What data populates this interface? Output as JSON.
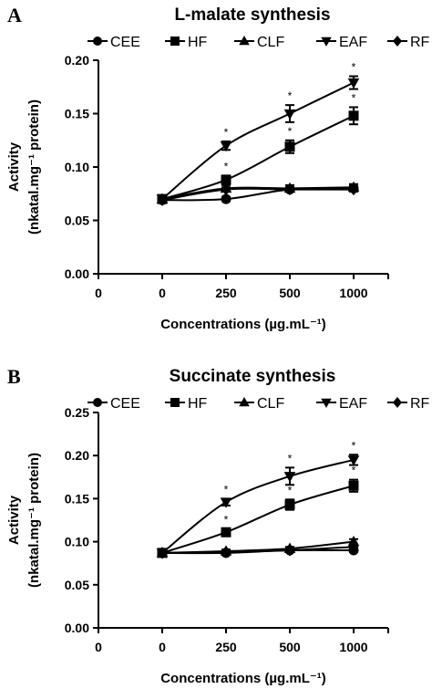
{
  "chart_data": [
    {
      "type": "line",
      "panel": "A",
      "title": "L-malate synthesis",
      "xlabel": "Concentrations (µg.mL⁻¹)",
      "ylabel_line1": "Activity",
      "ylabel_line2": "(nkatal.mg⁻¹ protein)",
      "categories": [
        "0",
        "250",
        "500",
        "1000"
      ],
      "x_tick_labels": [
        "0",
        "0",
        "250",
        "500",
        "1000"
      ],
      "y_tick_labels": [
        "0.00",
        "0.05",
        "0.10",
        "0.15",
        "0.20"
      ],
      "ylim": [
        0,
        0.2
      ],
      "y_ticks": [
        0,
        0.05,
        0.1,
        0.15,
        0.2
      ],
      "legend_position": "top",
      "series": [
        {
          "name": "CEE",
          "marker": "circle",
          "values": [
            0.069,
            0.07,
            0.079,
            0.08
          ],
          "err": [
            0.002,
            0.002,
            0.002,
            0.003
          ],
          "stars": [
            false,
            false,
            false,
            false
          ]
        },
        {
          "name": "HF",
          "marker": "square",
          "values": [
            0.07,
            0.088,
            0.119,
            0.148
          ],
          "err": [
            0.002,
            0.004,
            0.006,
            0.008
          ],
          "stars": [
            false,
            true,
            true,
            true
          ]
        },
        {
          "name": "CLF",
          "marker": "triangle-up",
          "values": [
            0.07,
            0.08,
            0.08,
            0.081
          ],
          "err": [
            0.002,
            0.003,
            0.003,
            0.003
          ],
          "stars": [
            false,
            false,
            false,
            false
          ]
        },
        {
          "name": "EAF",
          "marker": "triangle-down",
          "values": [
            0.07,
            0.12,
            0.15,
            0.179
          ],
          "err": [
            0.002,
            0.004,
            0.008,
            0.006
          ],
          "stars": [
            false,
            true,
            true,
            true
          ]
        },
        {
          "name": "RF",
          "marker": "diamond",
          "values": [
            0.069,
            0.079,
            0.079,
            0.079
          ],
          "err": [
            0.002,
            0.002,
            0.002,
            0.002
          ],
          "stars": [
            false,
            false,
            false,
            false
          ]
        }
      ]
    },
    {
      "type": "line",
      "panel": "B",
      "title": "Succinate synthesis",
      "xlabel": "Concentrations (µg.mL⁻¹)",
      "ylabel_line1": "Activity",
      "ylabel_line2": "(nkatal.mg⁻¹ protein)",
      "categories": [
        "0",
        "250",
        "500",
        "1000"
      ],
      "x_tick_labels": [
        "0",
        "0",
        "250",
        "500",
        "1000"
      ],
      "y_tick_labels": [
        "0.00",
        "0.05",
        "0.10",
        "0.15",
        "0.20",
        "0.25"
      ],
      "ylim": [
        0,
        0.25
      ],
      "y_ticks": [
        0,
        0.05,
        0.1,
        0.15,
        0.2,
        0.25
      ],
      "legend_position": "top",
      "series": [
        {
          "name": "CEE",
          "marker": "circle",
          "values": [
            0.087,
            0.087,
            0.09,
            0.09
          ],
          "err": [
            0.002,
            0.002,
            0.002,
            0.002
          ],
          "stars": [
            false,
            false,
            false,
            false
          ]
        },
        {
          "name": "HF",
          "marker": "square",
          "values": [
            0.087,
            0.111,
            0.143,
            0.165
          ],
          "err": [
            0.002,
            0.004,
            0.006,
            0.007
          ],
          "stars": [
            false,
            true,
            true,
            true
          ]
        },
        {
          "name": "CLF",
          "marker": "triangle-up",
          "values": [
            0.087,
            0.089,
            0.092,
            0.1
          ],
          "err": [
            0.002,
            0.002,
            0.002,
            0.003
          ],
          "stars": [
            false,
            false,
            false,
            false
          ]
        },
        {
          "name": "EAF",
          "marker": "triangle-down",
          "values": [
            0.087,
            0.146,
            0.176,
            0.195
          ],
          "err": [
            0.002,
            0.004,
            0.01,
            0.006
          ],
          "stars": [
            false,
            true,
            true,
            true
          ]
        },
        {
          "name": "RF",
          "marker": "diamond",
          "values": [
            0.087,
            0.088,
            0.09,
            0.094
          ],
          "err": [
            0.002,
            0.002,
            0.002,
            0.002
          ],
          "stars": [
            false,
            false,
            false,
            false
          ]
        }
      ]
    }
  ]
}
